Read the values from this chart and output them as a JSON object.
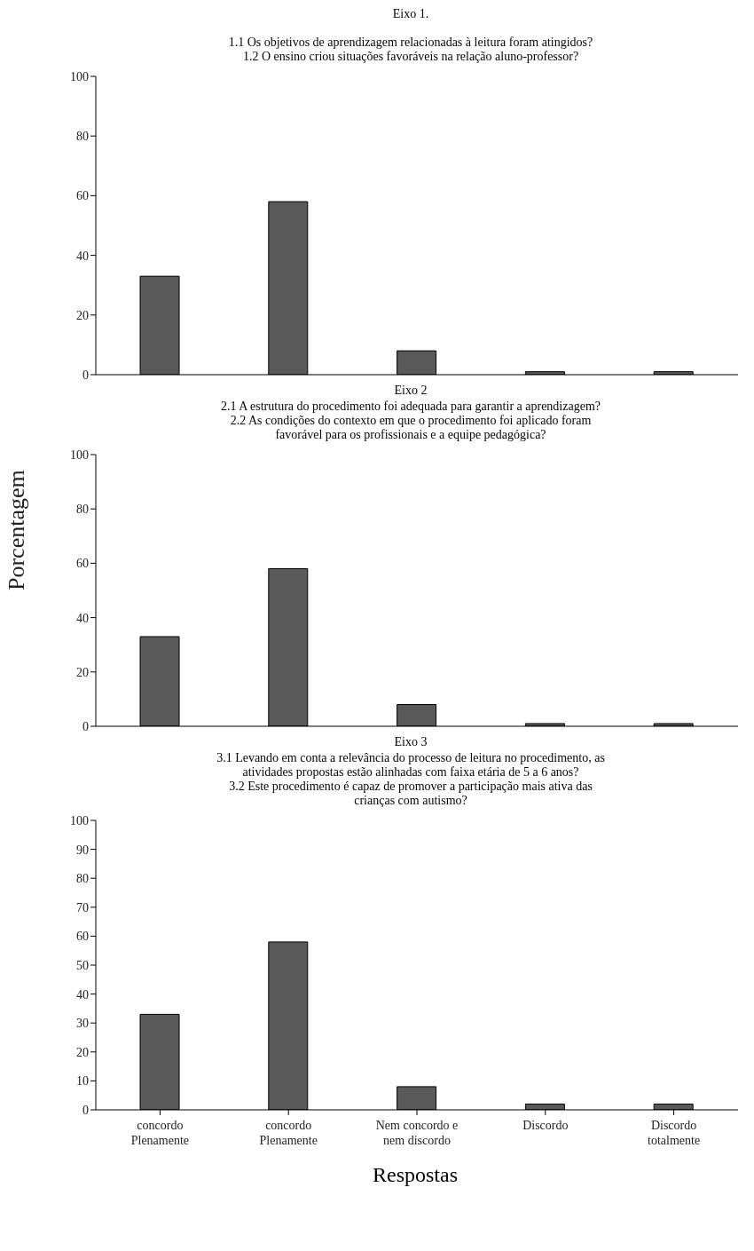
{
  "chart_data": [
    {
      "type": "bar",
      "title": "Eixo 1.",
      "subtitle": "1.1 Os objetivos de aprendizagem relacionadas à leitura foram atingidos?\n1.2 O ensino criou situações favoráveis na relação  aluno-professor?",
      "categories": [
        null,
        null,
        null,
        null,
        null
      ],
      "values": [
        33,
        58,
        8,
        1,
        1
      ],
      "color": "#595959",
      "ylim": [
        0,
        100
      ],
      "yticks": [
        0,
        20,
        40,
        60,
        80,
        100
      ],
      "grid": false,
      "tick_labels": "y"
    },
    {
      "type": "bar",
      "title": "Eixo 2",
      "subtitle": "2.1 A  estrutura do procedimento foi adequada para garantir a aprendizagem?\n2.2 As condições do contexto em que o procedimento foi aplicado foram\nfavorável para os profissionais e a equipe pedagógica?",
      "ylabel": "Porcentagem",
      "categories": [
        null,
        null,
        null,
        null,
        null
      ],
      "values": [
        33,
        58,
        8,
        1,
        1
      ],
      "color": "#595959",
      "ylim": [
        0,
        100
      ],
      "yticks": [
        0,
        20,
        40,
        60,
        80,
        100
      ],
      "grid": false,
      "tick_labels": "y"
    },
    {
      "type": "bar",
      "title": "Eixo 3",
      "subtitle": "3.1 Levando em conta a relevância  do processo de leitura no procedimento, as\natividades propostas estão alinhadas com faixa etária de 5 a 6 anos?\n3.2 Este procedimento é capaz de promover a participação mais ativa das\ncrianças com autismo?",
      "xlabel": "Respostas",
      "categories": [
        "concordo Plenamente",
        "concordo Plenamente",
        "Nem concordo e nem discordo",
        "Discordo",
        "Discordo totalmente"
      ],
      "values": [
        33,
        58,
        8,
        2,
        2
      ],
      "color": "#595959",
      "ylim": [
        0,
        100
      ],
      "yticks": [
        0,
        10,
        20,
        30,
        40,
        50,
        60,
        70,
        80,
        90,
        100
      ],
      "grid": false
    }
  ]
}
